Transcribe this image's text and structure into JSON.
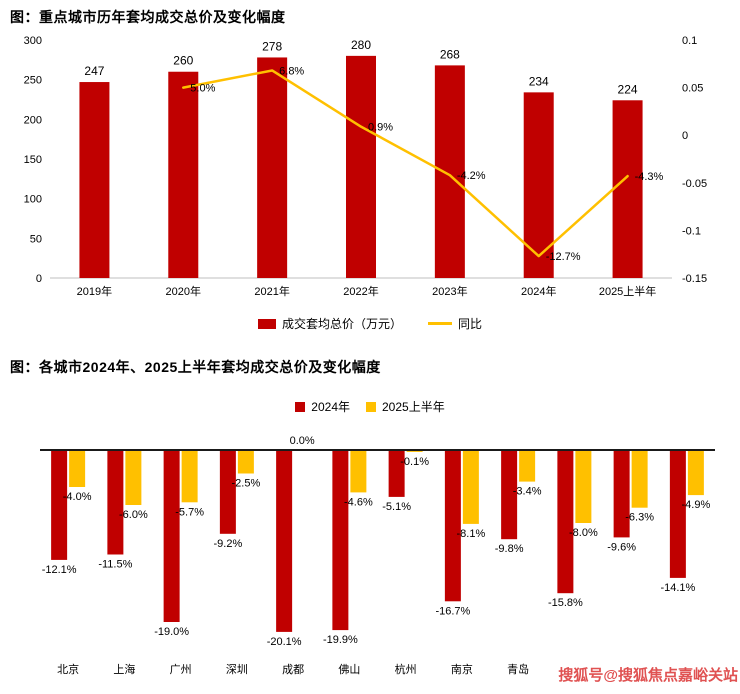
{
  "colors": {
    "bar_red": "#c00000",
    "line_yellow": "#ffc000",
    "bar_yellow": "#ffc000",
    "axis_line": "#bfbfbf",
    "zero_axis": "#1a1a1a",
    "text": "#000000",
    "watermark": "#e05252"
  },
  "watermark": "搜狐号@搜狐焦点嘉峪关站",
  "chart_data": [
    {
      "type": "bar",
      "subtype": "bar-line-combo",
      "title": "图：重点城市历年套均成交总价及变化幅度",
      "categories": [
        "2019年",
        "2020年",
        "2021年",
        "2022年",
        "2023年",
        "2024年",
        "2025上半年"
      ],
      "bar_series": {
        "name": "成交套均总价（万元）",
        "color": "#c00000",
        "values": [
          247,
          260,
          278,
          280,
          268,
          234,
          224
        ]
      },
      "line_series": {
        "name": "同比",
        "color": "#ffc000",
        "values": [
          null,
          0.05,
          0.068,
          0.009,
          -0.042,
          -0.127,
          -0.043
        ],
        "labels": [
          "",
          "5.0%",
          "6.8%",
          "0.9%",
          "-4.2%",
          "-12.7%",
          "-4.3%"
        ]
      },
      "left_axis": {
        "min": 0,
        "max": 300,
        "ticks": [
          0,
          50,
          100,
          150,
          200,
          250,
          300
        ],
        "tick_labels": [
          "0",
          "50",
          "100",
          "150",
          "200",
          "250",
          "300"
        ]
      },
      "right_axis": {
        "min": -0.15,
        "max": 0.1,
        "ticks": [
          0.1,
          0.05,
          0,
          -0.05,
          -0.1,
          -0.15
        ],
        "tick_labels": [
          "0.1",
          "0.05",
          "0",
          "-0.05",
          "-0.1",
          "-0.15"
        ]
      },
      "legend_position": "bottom",
      "grid": false
    },
    {
      "type": "bar",
      "title": "图：各城市2024年、2025上半年套均成交总价及变化幅度",
      "categories": [
        "北京",
        "上海",
        "广州",
        "深圳",
        "成都",
        "佛山",
        "杭州",
        "南京",
        "青岛",
        "",
        "",
        ""
      ],
      "series": [
        {
          "name": "2024年",
          "color": "#c00000",
          "values": [
            -12.1,
            -11.5,
            -19.0,
            -9.2,
            -20.1,
            -19.9,
            -5.1,
            -16.7,
            -9.8,
            -15.8,
            -9.6,
            -14.1
          ],
          "labels": [
            "-12.1%",
            "-11.5%",
            "-19.0%",
            "-9.2%",
            "-20.1%",
            "-19.9%",
            "-5.1%",
            "-16.7%",
            "-9.8%",
            "-15.8%",
            "-9.6%",
            "-14.1%"
          ]
        },
        {
          "name": "2025上半年",
          "color": "#ffc000",
          "values": [
            -4.0,
            -6.0,
            -5.7,
            -2.5,
            0.0,
            -4.6,
            -0.1,
            -8.1,
            -3.4,
            -8.0,
            -6.3,
            -4.9
          ],
          "labels": [
            "-4.0%",
            "-6.0%",
            "-5.7%",
            "-2.5%",
            "0.0%",
            "-4.6%",
            "-0.1%",
            "-8.1%",
            "-3.4%",
            "-8.0%",
            "-6.3%",
            "-4.9%"
          ]
        }
      ],
      "value_format": "percent",
      "legend_position": "top",
      "grid": false
    }
  ]
}
